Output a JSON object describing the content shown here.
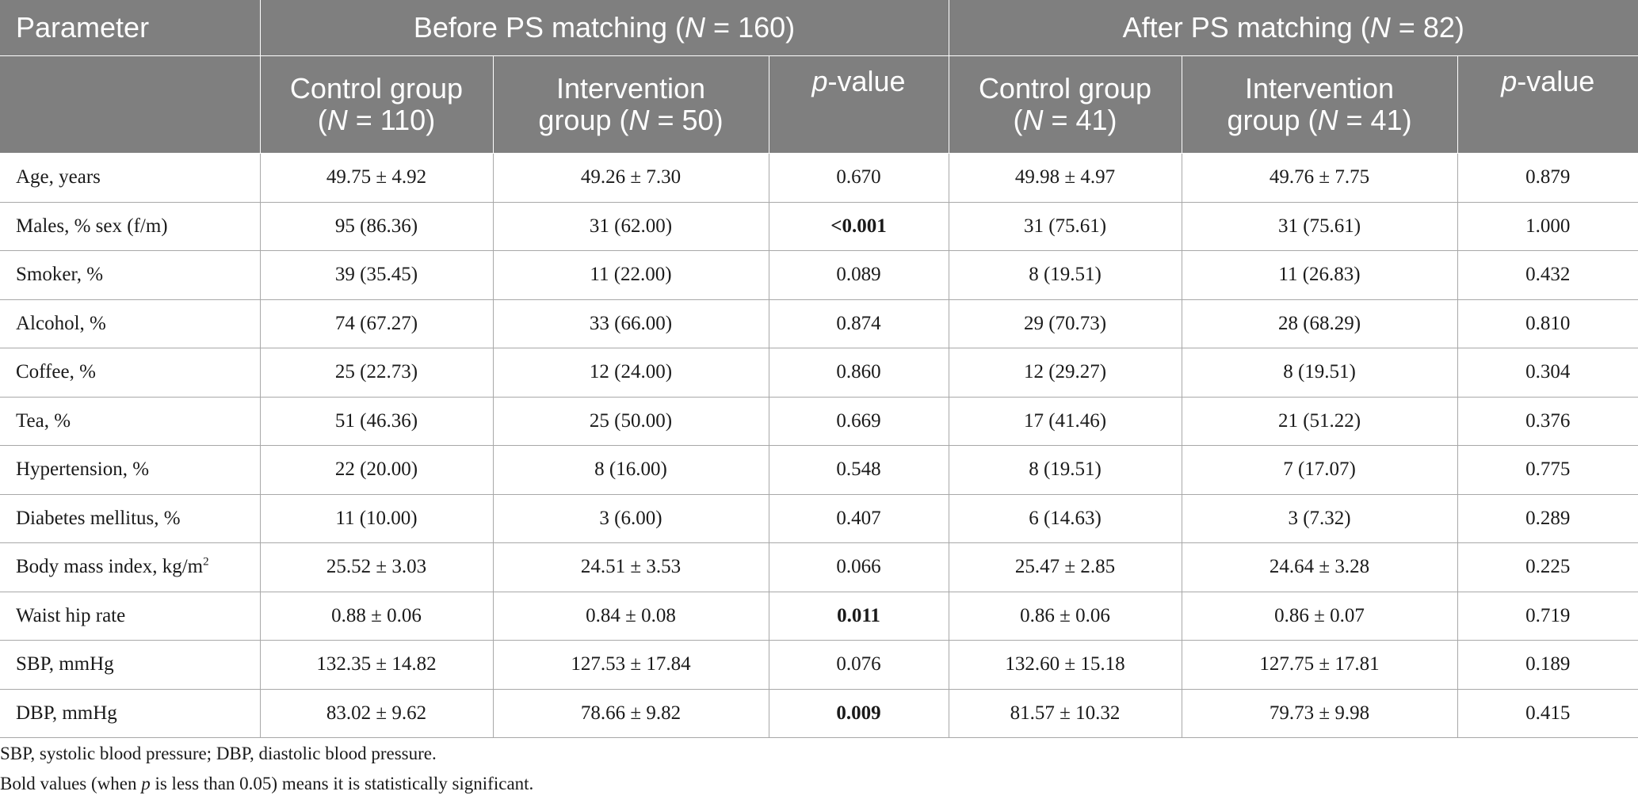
{
  "header": {
    "parameter": "Parameter",
    "before_group": {
      "prefix": "Before PS matching (",
      "n_italic": "N",
      "suffix": " = 160)"
    },
    "after_group": {
      "prefix": "After PS matching (",
      "n_italic": "N",
      "suffix": " = 82)"
    },
    "sub_columns": [
      {
        "line1": "Control group",
        "line2_prefix": "(",
        "line2_n": "N",
        "line2_suffix": " = 110)"
      },
      {
        "line1": "Intervention",
        "line2_prefix": "group (",
        "line2_n": "N",
        "line2_suffix": " = 50)"
      },
      {
        "p_italic": "p",
        "p_rest": "-value"
      },
      {
        "line1": "Control group",
        "line2_prefix": "(",
        "line2_n": "N",
        "line2_suffix": " = 41)"
      },
      {
        "line1": "Intervention",
        "line2_prefix": "group (",
        "line2_n": "N",
        "line2_suffix": " = 41)"
      },
      {
        "p_italic": "p",
        "p_rest": "-value"
      }
    ]
  },
  "rows": [
    {
      "label": "Age, years",
      "cells": [
        "49.75 ± 4.92",
        "49.26 ± 7.30",
        "0.670",
        "49.98 ± 4.97",
        "49.76 ± 7.75",
        "0.879"
      ],
      "bold": []
    },
    {
      "label": "Males, % sex (f/m)",
      "cells": [
        "95 (86.36)",
        "31 (62.00)",
        "<0.001",
        "31 (75.61)",
        "31 (75.61)",
        "1.000"
      ],
      "bold": [
        2
      ]
    },
    {
      "label": "Smoker, %",
      "cells": [
        "39 (35.45)",
        "11 (22.00)",
        "0.089",
        "8 (19.51)",
        "11 (26.83)",
        "0.432"
      ],
      "bold": []
    },
    {
      "label": "Alcohol, %",
      "cells": [
        "74 (67.27)",
        "33 (66.00)",
        "0.874",
        "29 (70.73)",
        "28 (68.29)",
        "0.810"
      ],
      "bold": []
    },
    {
      "label": "Coffee, %",
      "cells": [
        "25 (22.73)",
        "12 (24.00)",
        "0.860",
        "12 (29.27)",
        "8 (19.51)",
        "0.304"
      ],
      "bold": []
    },
    {
      "label": "Tea, %",
      "cells": [
        "51 (46.36)",
        "25 (50.00)",
        "0.669",
        "17 (41.46)",
        "21 (51.22)",
        "0.376"
      ],
      "bold": []
    },
    {
      "label": "Hypertension, %",
      "cells": [
        "22 (20.00)",
        "8 (16.00)",
        "0.548",
        "8 (19.51)",
        "7 (17.07)",
        "0.775"
      ],
      "bold": []
    },
    {
      "label": "Diabetes mellitus, %",
      "cells": [
        "11 (10.00)",
        "3 (6.00)",
        "0.407",
        "6 (14.63)",
        "3 (7.32)",
        "0.289"
      ],
      "bold": []
    },
    {
      "label": "Body mass index, kg/m",
      "label_sup": "2",
      "cells": [
        "25.52 ± 3.03",
        "24.51 ± 3.53",
        "0.066",
        "25.47 ± 2.85",
        "24.64 ± 3.28",
        "0.225"
      ],
      "bold": []
    },
    {
      "label": "Waist hip rate",
      "cells": [
        "0.88 ± 0.06",
        "0.84 ± 0.08",
        "0.011",
        "0.86 ± 0.06",
        "0.86 ± 0.07",
        "0.719"
      ],
      "bold": [
        2
      ]
    },
    {
      "label": "SBP, mmHg",
      "cells": [
        "132.35 ± 14.82",
        "127.53 ± 17.84",
        "0.076",
        "132.60 ± 15.18",
        "127.75 ± 17.81",
        "0.189"
      ],
      "bold": []
    },
    {
      "label": "DBP, mmHg",
      "cells": [
        "83.02 ± 9.62",
        "78.66 ± 9.82",
        "0.009",
        "81.57 ± 10.32",
        "79.73 ± 9.98",
        "0.415"
      ],
      "bold": [
        2
      ]
    }
  ],
  "footnotes": {
    "line1": "SBP, systolic blood pressure; DBP, diastolic blood pressure.",
    "line2_prefix": "Bold values (when ",
    "line2_p": "p",
    "line2_suffix": " is less than 0.05) means it is statistically significant."
  }
}
